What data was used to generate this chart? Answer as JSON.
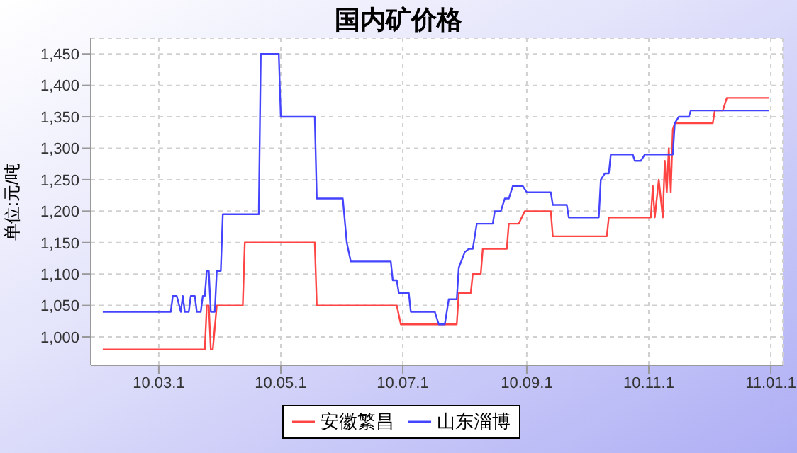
{
  "chart_data": {
    "type": "line",
    "title": "国内矿价格",
    "ylabel": "单位:元/吨",
    "xlim": [
      "2010-01-26",
      "2011-01-07"
    ],
    "xticks": [
      {
        "value": "2010-03-01",
        "label": "10.03.1"
      },
      {
        "value": "2010-05-01",
        "label": "10.05.1"
      },
      {
        "value": "2010-07-01",
        "label": "10.07.1"
      },
      {
        "value": "2010-09-01",
        "label": "10.09.1"
      },
      {
        "value": "2010-11-01",
        "label": "10.11.1"
      },
      {
        "value": "2011-01-01",
        "label": "11.01.1"
      }
    ],
    "ylim": [
      955,
      1475
    ],
    "yticks": [
      {
        "value": 1000,
        "label": "1,000"
      },
      {
        "value": 1050,
        "label": "1,050"
      },
      {
        "value": 1100,
        "label": "1,100"
      },
      {
        "value": 1150,
        "label": "1,150"
      },
      {
        "value": 1200,
        "label": "1,200"
      },
      {
        "value": 1250,
        "label": "1,250"
      },
      {
        "value": 1300,
        "label": "1,300"
      },
      {
        "value": 1350,
        "label": "1,350"
      },
      {
        "value": 1400,
        "label": "1,400"
      },
      {
        "value": 1450,
        "label": "1,450"
      }
    ],
    "grid": true,
    "legend": "bottom",
    "marker": "none",
    "line_style": "solid",
    "series": [
      {
        "name": "安徽繁昌",
        "color": "#ff4444",
        "x": [
          "2010-02-01",
          "2010-03-24",
          "2010-03-25",
          "2010-03-26",
          "2010-03-27",
          "2010-03-28",
          "2010-03-30",
          "2010-04-12",
          "2010-04-13",
          "2010-05-18",
          "2010-05-19",
          "2010-06-28",
          "2010-06-30",
          "2010-07-28",
          "2010-07-29",
          "2010-08-04",
          "2010-08-05",
          "2010-08-09",
          "2010-08-10",
          "2010-08-22",
          "2010-08-23",
          "2010-08-28",
          "2010-08-31",
          "2010-09-13",
          "2010-09-14",
          "2010-10-11",
          "2010-10-12",
          "2010-11-02",
          "2010-11-03",
          "2010-11-04",
          "2010-11-06",
          "2010-11-08",
          "2010-11-09",
          "2010-11-10",
          "2010-11-11",
          "2010-11-12",
          "2010-11-13",
          "2010-11-14",
          "2010-12-03",
          "2010-12-04",
          "2010-12-08",
          "2010-12-10",
          "2010-12-31"
        ],
        "values": [
          980,
          980,
          1050,
          1050,
          980,
          980,
          1050,
          1050,
          1150,
          1150,
          1050,
          1050,
          1020,
          1020,
          1070,
          1070,
          1100,
          1100,
          1140,
          1140,
          1180,
          1180,
          1200,
          1200,
          1160,
          1160,
          1190,
          1190,
          1240,
          1190,
          1250,
          1190,
          1280,
          1230,
          1300,
          1230,
          1330,
          1340,
          1340,
          1360,
          1360,
          1380,
          1380
        ]
      },
      {
        "name": "山东淄博",
        "color": "#4444ff",
        "x": [
          "2010-02-01",
          "2010-03-07",
          "2010-03-08",
          "2010-03-10",
          "2010-03-12",
          "2010-03-13",
          "2010-03-14",
          "2010-03-16",
          "2010-03-17",
          "2010-03-19",
          "2010-03-20",
          "2010-03-22",
          "2010-03-23",
          "2010-03-24",
          "2010-03-25",
          "2010-03-26",
          "2010-03-27",
          "2010-03-29",
          "2010-03-30",
          "2010-04-01",
          "2010-04-02",
          "2010-04-20",
          "2010-04-21",
          "2010-04-30",
          "2010-05-01",
          "2010-05-18",
          "2010-05-19",
          "2010-06-01",
          "2010-06-03",
          "2010-06-05",
          "2010-06-25",
          "2010-06-26",
          "2010-06-28",
          "2010-06-29",
          "2010-07-04",
          "2010-07-05",
          "2010-07-17",
          "2010-07-19",
          "2010-07-22",
          "2010-07-24",
          "2010-07-28",
          "2010-07-29",
          "2010-08-01",
          "2010-08-03",
          "2010-08-05",
          "2010-08-07",
          "2010-08-15",
          "2010-08-16",
          "2010-08-19",
          "2010-08-21",
          "2010-08-23",
          "2010-08-25",
          "2010-08-30",
          "2010-09-01",
          "2010-09-13",
          "2010-09-14",
          "2010-09-21",
          "2010-09-22",
          "2010-10-07",
          "2010-10-08",
          "2010-10-10",
          "2010-10-12",
          "2010-10-13",
          "2010-10-24",
          "2010-10-25",
          "2010-10-28",
          "2010-10-30",
          "2010-11-13",
          "2010-11-14",
          "2010-11-16",
          "2010-11-21",
          "2010-11-22",
          "2010-12-31"
        ],
        "values": [
          1040,
          1040,
          1065,
          1065,
          1040,
          1065,
          1040,
          1040,
          1065,
          1065,
          1040,
          1040,
          1065,
          1065,
          1105,
          1105,
          1040,
          1040,
          1105,
          1105,
          1195,
          1195,
          1450,
          1450,
          1350,
          1350,
          1220,
          1220,
          1150,
          1120,
          1120,
          1090,
          1090,
          1070,
          1070,
          1040,
          1040,
          1020,
          1020,
          1060,
          1060,
          1110,
          1135,
          1140,
          1140,
          1180,
          1180,
          1200,
          1200,
          1220,
          1220,
          1240,
          1240,
          1230,
          1230,
          1210,
          1210,
          1190,
          1190,
          1250,
          1260,
          1260,
          1290,
          1290,
          1280,
          1280,
          1290,
          1290,
          1340,
          1350,
          1350,
          1360,
          1360
        ]
      }
    ]
  }
}
